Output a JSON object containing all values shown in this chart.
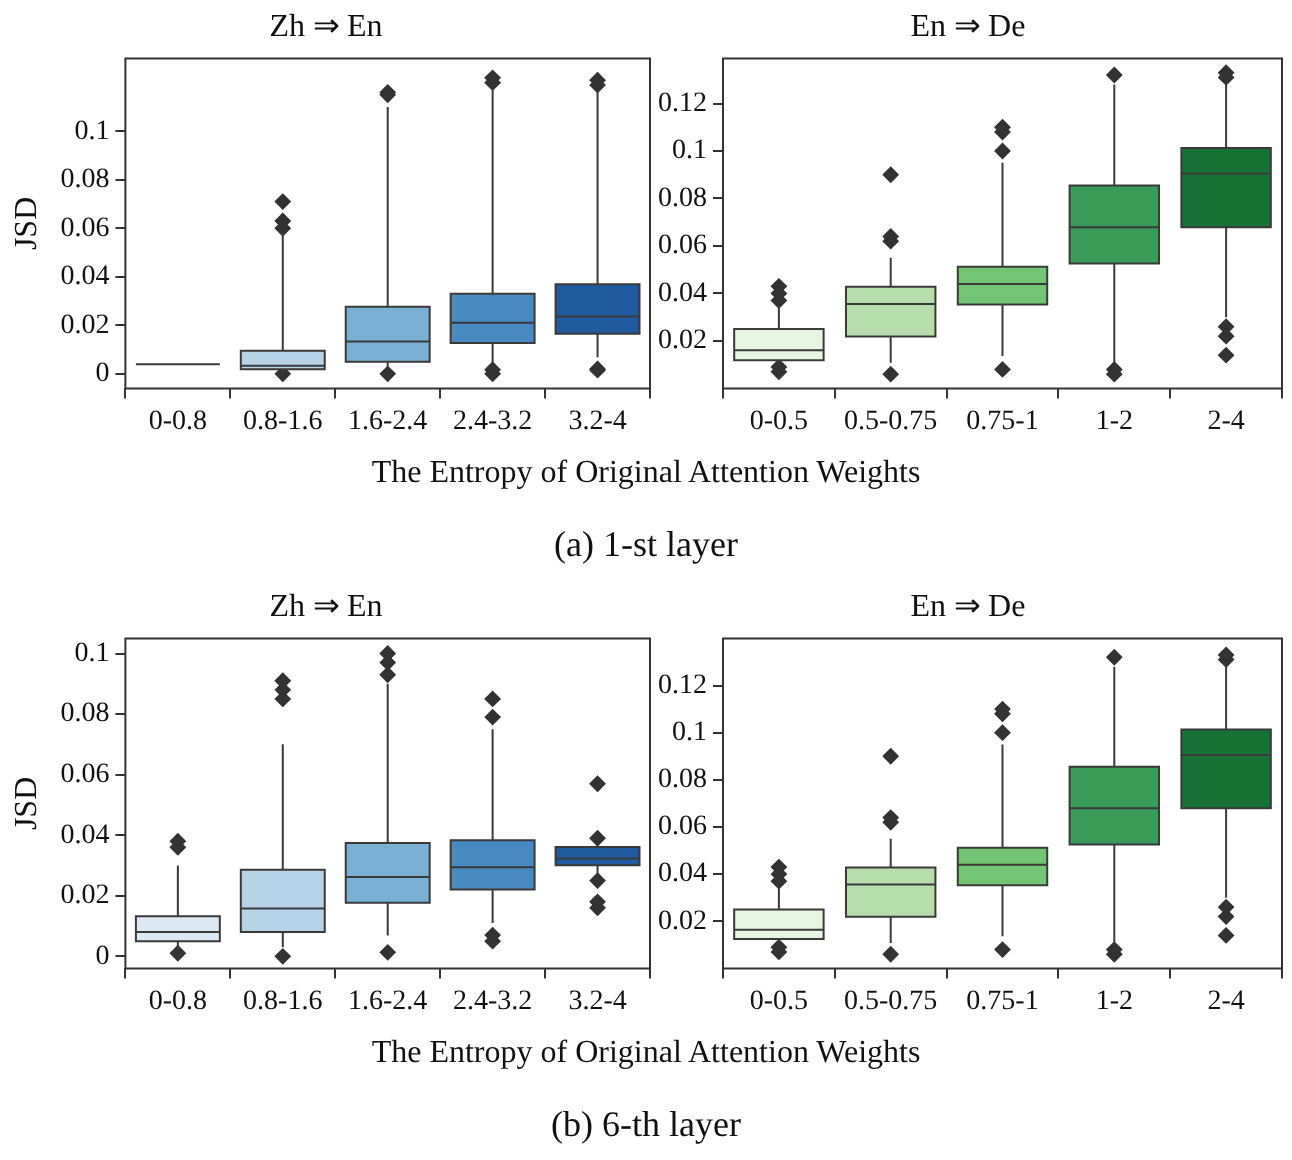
{
  "chart_data": [
    {
      "type": "box",
      "title": "Zh ⇒ En",
      "ylabel": "JSD",
      "xlabel": "The Entropy of Original Attention Weights",
      "annotations": [
        "(a)  1-st layer"
      ],
      "categories": [
        "0-0.8",
        "0.8-1.6",
        "1.6-2.4",
        "2.4-3.2",
        "3.2-4"
      ],
      "colors": [
        "#3a3a3a",
        "#b7d3e8",
        "#7bb0d5",
        "#4a8ac2",
        "#1f5b9e"
      ],
      "ylim": [
        -0.006,
        0.13
      ],
      "yticks": [
        0,
        0.02,
        0.04,
        0.06,
        0.08,
        0.1
      ],
      "boxes": [
        {
          "low": 0.004,
          "q1": 0.004,
          "median": 0.004,
          "q3": 0.004,
          "high": 0.004
        },
        {
          "low": 0.001,
          "q1": 0.0019,
          "median": 0.0033,
          "q3": 0.0095,
          "high": 0.058,
          "outliers": [
            0.071,
            0.063,
            0.06,
            0
          ]
        },
        {
          "low": 0.0024,
          "q1": 0.005,
          "median": 0.0133,
          "q3": 0.0276,
          "high": 0.11,
          "outliers": [
            0.116,
            0.115,
            0
          ]
        },
        {
          "low": 0.0046,
          "q1": 0.0127,
          "median": 0.0211,
          "q3": 0.033,
          "high": 0.118,
          "outliers": [
            0.122,
            0.12,
            0.0017,
            0
          ]
        },
        {
          "low": 0.0068,
          "q1": 0.0165,
          "median": 0.0236,
          "q3": 0.0369,
          "high": 0.117,
          "outliers": [
            0.121,
            0.119,
            0.002,
            0.0015
          ]
        }
      ]
    },
    {
      "type": "box",
      "title": "En ⇒ De",
      "categories": [
        "0-0.5",
        "0.5-0.75",
        "0.75-1",
        "1-2",
        "2-4"
      ],
      "colors": [
        "#e5f5e0",
        "#b5deac",
        "#74c476",
        "#3a9a58",
        "#177236"
      ],
      "ylim": [
        0,
        0.139
      ],
      "yticks": [
        0.02,
        0.04,
        0.06,
        0.08,
        0.1,
        0.12
      ],
      "boxes": [
        {
          "low": 0.011,
          "q1": 0.0119,
          "median": 0.0161,
          "q3": 0.025,
          "high": 0.0345,
          "outliers": [
            0.043,
            0.04,
            0.037,
            0.009,
            0.007
          ]
        },
        {
          "low": 0.0108,
          "q1": 0.0219,
          "median": 0.0356,
          "q3": 0.0428,
          "high": 0.055,
          "outliers": [
            0.09,
            0.064,
            0.062,
            0.006
          ]
        },
        {
          "low": 0.0136,
          "q1": 0.0353,
          "median": 0.044,
          "q3": 0.0512,
          "high": 0.095,
          "outliers": [
            0.11,
            0.108,
            0.1,
            0.008
          ]
        },
        {
          "low": 0.011,
          "q1": 0.0526,
          "median": 0.0679,
          "q3": 0.0855,
          "high": 0.128,
          "outliers": [
            0.132,
            0.008,
            0.006
          ]
        },
        {
          "low": 0.03,
          "q1": 0.0679,
          "median": 0.0905,
          "q3": 0.1013,
          "high": 0.13,
          "outliers": [
            0.133,
            0.131,
            0.026,
            0.022,
            0.014
          ]
        }
      ]
    },
    {
      "type": "box",
      "title": "Zh ⇒ En",
      "ylabel": "JSD",
      "xlabel": "The Entropy of Original Attention Weights",
      "annotations": [
        "(b)  6-th layer"
      ],
      "categories": [
        "0-0.8",
        "0.8-1.6",
        "1.6-2.4",
        "2.4-3.2",
        "3.2-4"
      ],
      "colors": [
        "#dce9f5",
        "#b7d3e8",
        "#7bb0d5",
        "#4a8ac2",
        "#1f5b9e"
      ],
      "ylim": [
        -0.004,
        0.105
      ],
      "yticks": [
        0,
        0.02,
        0.04,
        0.06,
        0.08,
        0.1
      ],
      "boxes": [
        {
          "low": 0.002,
          "q1": 0.005,
          "median": 0.008,
          "q3": 0.0132,
          "high": 0.03,
          "outliers": [
            0.038,
            0.036,
            0.001
          ]
        },
        {
          "low": 0.003,
          "q1": 0.008,
          "median": 0.0158,
          "q3": 0.0286,
          "high": 0.07,
          "outliers": [
            0.091,
            0.088,
            0.085,
            0
          ]
        },
        {
          "low": 0.0069,
          "q1": 0.0177,
          "median": 0.0262,
          "q3": 0.0374,
          "high": 0.09,
          "outliers": [
            0.1,
            0.097,
            0.093,
            0.0013
          ]
        },
        {
          "low": 0.011,
          "q1": 0.0221,
          "median": 0.0294,
          "q3": 0.0383,
          "high": 0.075,
          "outliers": [
            0.085,
            0.079,
            0.007,
            0.005
          ]
        },
        {
          "low": 0.027,
          "q1": 0.0301,
          "median": 0.0323,
          "q3": 0.0361,
          "high": 0.037,
          "outliers": [
            0.057,
            0.039,
            0.025,
            0.018,
            0.016
          ]
        }
      ]
    },
    {
      "type": "box",
      "title": "En ⇒ De",
      "categories": [
        "0-0.5",
        "0.5-0.75",
        "0.75-1",
        "1-2",
        "2-4"
      ],
      "colors": [
        "#e5f5e0",
        "#b5deac",
        "#74c476",
        "#3a9a58",
        "#177236"
      ],
      "ylim": [
        0,
        0.14
      ],
      "yticks": [
        0.02,
        0.04,
        0.06,
        0.08,
        0.1,
        0.12
      ],
      "boxes": [
        {
          "low": 0.011,
          "q1": 0.0125,
          "median": 0.0164,
          "q3": 0.025,
          "high": 0.0345,
          "outliers": [
            0.043,
            0.04,
            0.037,
            0.009,
            0.007
          ]
        },
        {
          "low": 0.0108,
          "q1": 0.0219,
          "median": 0.0356,
          "q3": 0.0428,
          "high": 0.055,
          "outliers": [
            0.09,
            0.064,
            0.062,
            0.006
          ]
        },
        {
          "low": 0.0136,
          "q1": 0.0353,
          "median": 0.044,
          "q3": 0.0512,
          "high": 0.095,
          "outliers": [
            0.11,
            0.108,
            0.1,
            0.008
          ]
        },
        {
          "low": 0.011,
          "q1": 0.0526,
          "median": 0.0679,
          "q3": 0.0855,
          "high": 0.128,
          "outliers": [
            0.132,
            0.008,
            0.006
          ]
        },
        {
          "low": 0.03,
          "q1": 0.0679,
          "median": 0.0905,
          "q3": 0.1013,
          "high": 0.13,
          "outliers": [
            0.133,
            0.131,
            0.026,
            0.022,
            0.014
          ]
        }
      ]
    }
  ]
}
